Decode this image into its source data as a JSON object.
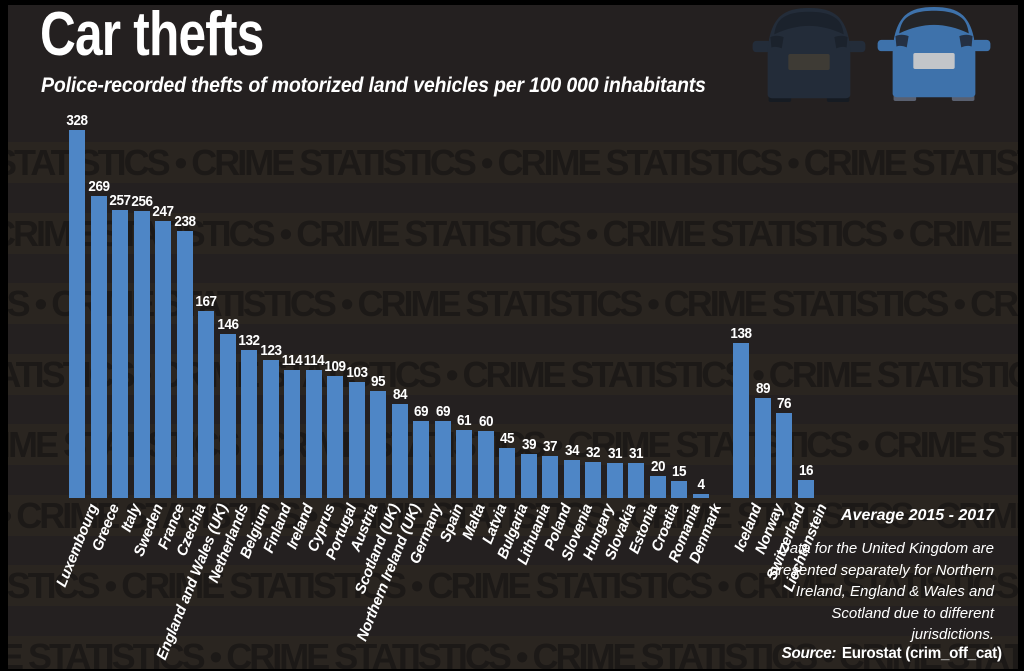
{
  "watermark": {
    "text": "CRIME STATISTICS",
    "separator": " • "
  },
  "chart_data": {
    "type": "bar",
    "title": "Car thefts",
    "subtitle": "Police-recorded thefts of motorized land vehicles per 100 000 inhabitants",
    "ylim": [
      0,
      328
    ],
    "grid": false,
    "value_labels": "above-bars",
    "bar_color": "#4e86c6",
    "series": [
      {
        "name": "left-group",
        "items": [
          {
            "label": "Luxembourg",
            "value": 328
          },
          {
            "label": "Greece",
            "value": 269
          },
          {
            "label": "Italy",
            "value": 257
          },
          {
            "label": "Sweden",
            "value": 256
          },
          {
            "label": "France",
            "value": 247
          },
          {
            "label": "Czechia",
            "value": 238
          },
          {
            "label": "England and Wales (UK)",
            "value": 167
          },
          {
            "label": "Netherlands",
            "value": 146
          },
          {
            "label": "Belgium",
            "value": 132
          },
          {
            "label": "Finland",
            "value": 123
          },
          {
            "label": "Ireland",
            "value": 114
          },
          {
            "label": "Cyprus",
            "value": 114
          },
          {
            "label": "Portugal",
            "value": 109
          },
          {
            "label": "Austria",
            "value": 103
          },
          {
            "label": "Scotland (UK)",
            "value": 95
          },
          {
            "label": "Northern Ireland (UK)",
            "value": 84
          },
          {
            "label": "Germany",
            "value": 69
          },
          {
            "label": "Spain",
            "value": 69
          },
          {
            "label": "Malta",
            "value": 61
          },
          {
            "label": "Latvia",
            "value": 60
          },
          {
            "label": "Bulgaria",
            "value": 45
          },
          {
            "label": "Lithuania",
            "value": 39
          },
          {
            "label": "Poland",
            "value": 37
          },
          {
            "label": "Slovenia",
            "value": 34
          },
          {
            "label": "Hungary",
            "value": 32
          },
          {
            "label": "Slovakia",
            "value": 31
          },
          {
            "label": "Estonia",
            "value": 31
          },
          {
            "label": "Croatia",
            "value": 20
          },
          {
            "label": "Romania",
            "value": 15
          },
          {
            "label": "Denmark",
            "value": 4
          }
        ]
      },
      {
        "name": "right-group",
        "items": [
          {
            "label": "Iceland",
            "value": 138
          },
          {
            "label": "Norway",
            "value": 89
          },
          {
            "label": "Switzerland",
            "value": 76
          },
          {
            "label": "Liechtenstein",
            "value": 16
          }
        ]
      }
    ]
  },
  "annotations": {
    "period": "Average 2015 - 2017",
    "footnote": "Data for the United Kingdom are presented separately for Northern Ireland, England & Wales and Scotland due to different jurisdictions.",
    "source_label": "Source:",
    "source_text": "Eurostat (crim_off_cat)"
  },
  "icons": {
    "left": "car-rear-dark-icon",
    "right": "car-rear-blue-icon"
  },
  "colors": {
    "frame": "#000000",
    "background": "#242020",
    "watermark_band": "#2a2520",
    "watermark_text": "#1c1917",
    "bar": "#4e86c6",
    "text": "#ffffff",
    "car_blue": "#3e72ab",
    "car_dark": "#232c39"
  }
}
